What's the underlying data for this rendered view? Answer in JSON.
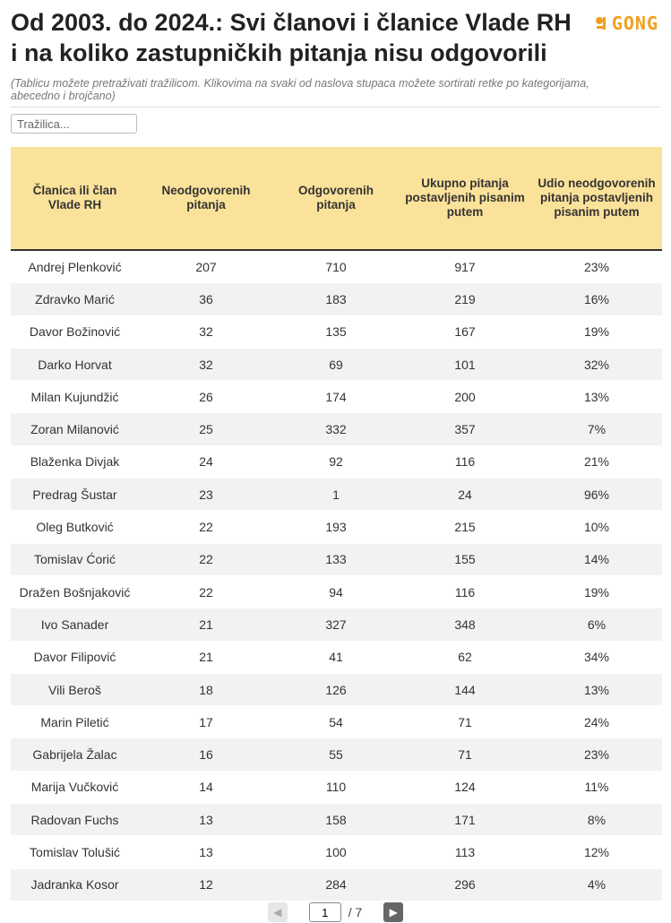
{
  "title": "Od 2003. do 2024.: Svi članovi i članice Vlade RH i na koliko zastupničkih pitanja nisu odgovorili",
  "logo_text": "GONG",
  "subtitle": "(Tablicu možete pretraživati tražilicom. Klikovima na svaki od naslova stupaca možete sortirati retke po kategorijama, abecedno i brojčano)",
  "search": {
    "placeholder": "Tražilica..."
  },
  "table": {
    "columns": [
      "Članica ili član Vlade RH",
      "Neodgovorenih pitanja",
      "Odgovorenih pitanja",
      "Ukupno pitanja postavljenih pisanim putem",
      "Udio neodgovorenih pitanja postavljenih pisanim putem"
    ],
    "rows": [
      [
        "Andrej Plenković",
        "207",
        "710",
        "917",
        "23%"
      ],
      [
        "Zdravko Marić",
        "36",
        "183",
        "219",
        "16%"
      ],
      [
        "Davor Božinović",
        "32",
        "135",
        "167",
        "19%"
      ],
      [
        "Darko Horvat",
        "32",
        "69",
        "101",
        "32%"
      ],
      [
        "Milan Kujundžić",
        "26",
        "174",
        "200",
        "13%"
      ],
      [
        "Zoran Milanović",
        "25",
        "332",
        "357",
        "7%"
      ],
      [
        "Blaženka Divjak",
        "24",
        "92",
        "116",
        "21%"
      ],
      [
        "Predrag Šustar",
        "23",
        "1",
        "24",
        "96%"
      ],
      [
        "Oleg Butković",
        "22",
        "193",
        "215",
        "10%"
      ],
      [
        "Tomislav Ćorić",
        "22",
        "133",
        "155",
        "14%"
      ],
      [
        "Dražen Bošnjaković",
        "22",
        "94",
        "116",
        "19%"
      ],
      [
        "Ivo Sanader",
        "21",
        "327",
        "348",
        "6%"
      ],
      [
        "Davor Filipović",
        "21",
        "41",
        "62",
        "34%"
      ],
      [
        "Vili Beroš",
        "18",
        "126",
        "144",
        "13%"
      ],
      [
        "Marin Piletić",
        "17",
        "54",
        "71",
        "24%"
      ],
      [
        "Gabrijela Žalac",
        "16",
        "55",
        "71",
        "23%"
      ],
      [
        "Marija Vučković",
        "14",
        "110",
        "124",
        "11%"
      ],
      [
        "Radovan Fuchs",
        "13",
        "158",
        "171",
        "8%"
      ],
      [
        "Tomislav Tolušić",
        "13",
        "100",
        "113",
        "12%"
      ],
      [
        "Jadranka Kosor",
        "12",
        "284",
        "296",
        "4%"
      ]
    ]
  },
  "pagination": {
    "current_page": "1",
    "total_label": "/ 7"
  },
  "colors": {
    "header_bg": "#fbe29a",
    "logo": "#f0a020",
    "stripe": "#f2f2f2"
  }
}
